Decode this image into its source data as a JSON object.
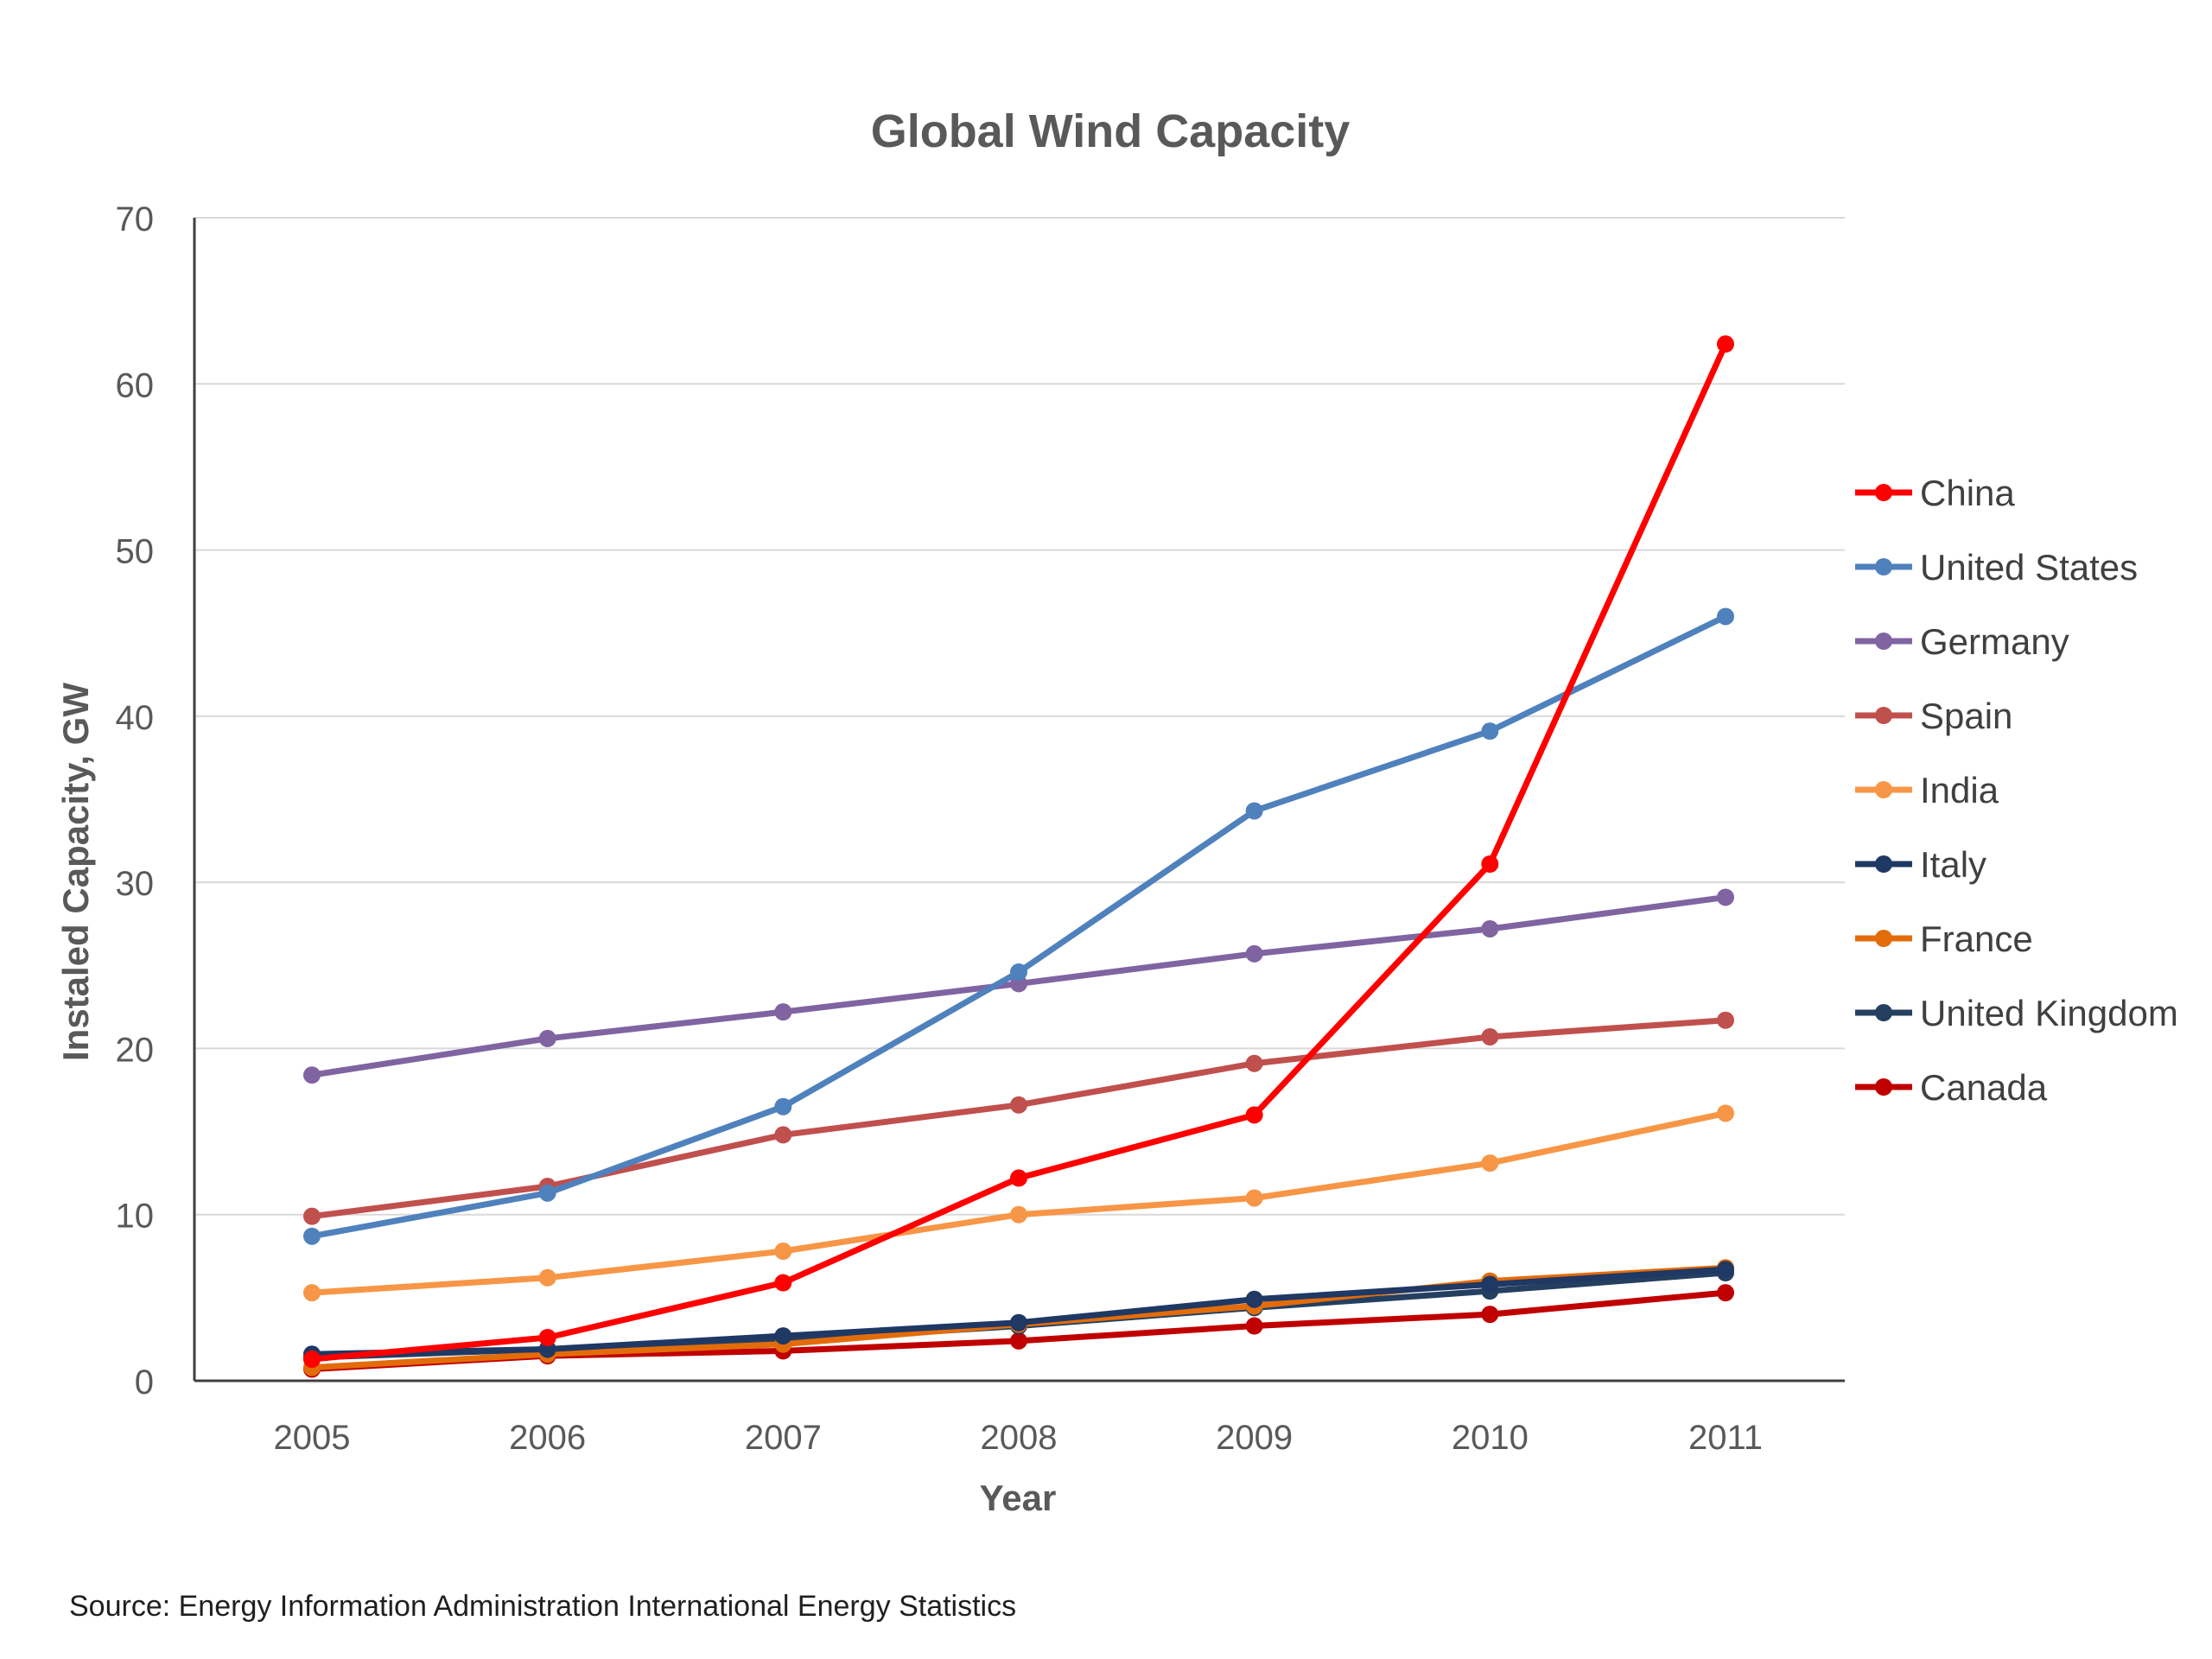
{
  "chart_data": {
    "type": "line",
    "title": "Global Wind Capacity",
    "xlabel": "Year",
    "ylabel": "Instaled Capacity, GW",
    "x": [
      "2005",
      "2006",
      "2007",
      "2008",
      "2009",
      "2010",
      "2011"
    ],
    "ylim": [
      0,
      70
    ],
    "yticks": [
      0,
      10,
      20,
      30,
      40,
      50,
      60,
      70
    ],
    "grid": true,
    "legend_position": "right",
    "series": [
      {
        "name": "China",
        "color": "#ff0000",
        "values": [
          1.3,
          2.6,
          5.9,
          12.2,
          16.0,
          31.1,
          62.4
        ]
      },
      {
        "name": "United States",
        "color": "#4f81bd",
        "values": [
          8.7,
          11.3,
          16.5,
          24.6,
          34.3,
          39.1,
          46.0
        ]
      },
      {
        "name": "Germany",
        "color": "#8064a2",
        "values": [
          18.4,
          20.6,
          22.2,
          23.9,
          25.7,
          27.2,
          29.1
        ]
      },
      {
        "name": "Spain",
        "color": "#c0504d",
        "values": [
          9.9,
          11.7,
          14.8,
          16.6,
          19.1,
          20.7,
          21.7
        ]
      },
      {
        "name": "India",
        "color": "#f79646",
        "values": [
          5.3,
          6.2,
          7.8,
          10.0,
          11.0,
          13.1,
          16.1
        ]
      },
      {
        "name": "Italy",
        "color": "#1f3864",
        "values": [
          1.6,
          1.9,
          2.7,
          3.5,
          4.9,
          5.8,
          6.7
        ]
      },
      {
        "name": "France",
        "color": "#e36c0a",
        "values": [
          0.8,
          1.6,
          2.2,
          3.4,
          4.5,
          6.0,
          6.8
        ]
      },
      {
        "name": "United Kingdom",
        "color": "#243f60",
        "values": [
          1.4,
          1.9,
          2.4,
          3.3,
          4.4,
          5.4,
          6.5
        ]
      },
      {
        "name": "Canada",
        "color": "#c00000",
        "values": [
          0.7,
          1.5,
          1.8,
          2.4,
          3.3,
          4.0,
          5.3
        ]
      }
    ]
  },
  "source_text": "Source: Energy Information Administration International Energy Statistics"
}
